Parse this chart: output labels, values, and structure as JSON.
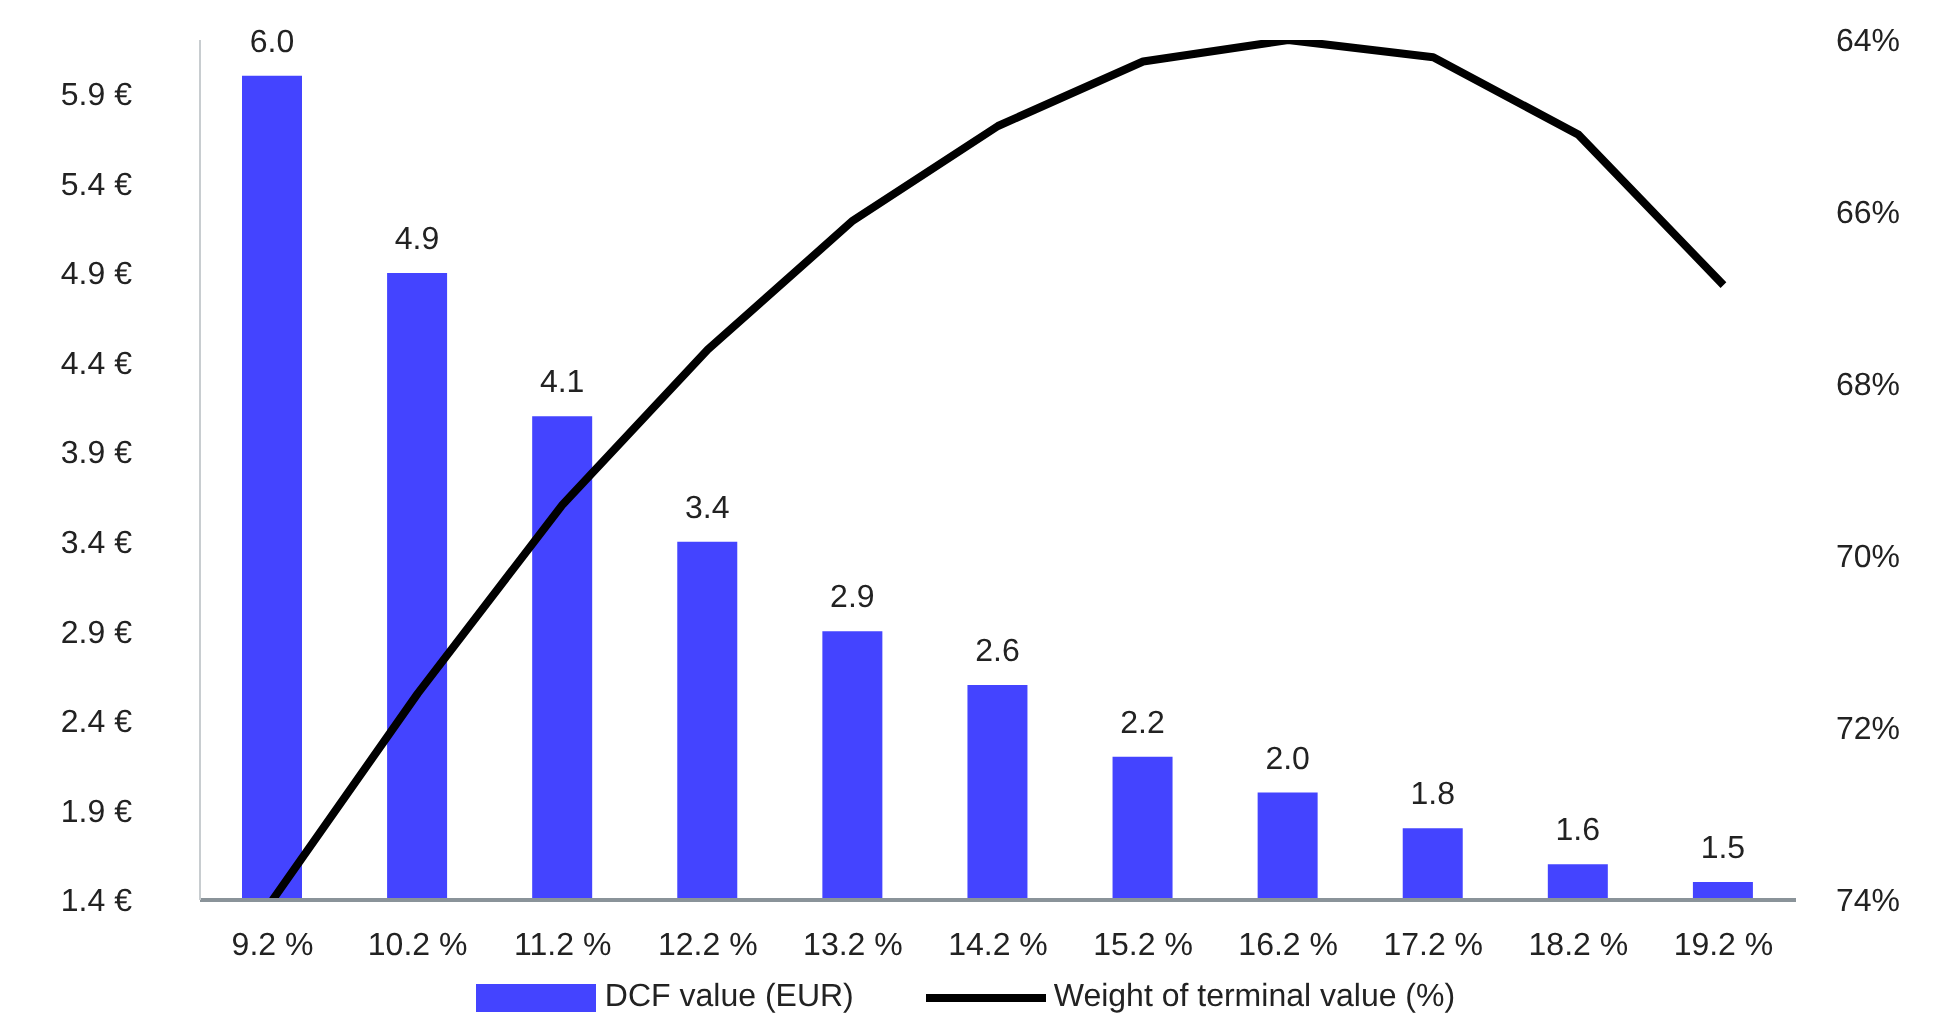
{
  "chart_data": {
    "type": "bar",
    "categories": [
      "9.2 %",
      "10.2 %",
      "11.2 %",
      "12.2 %",
      "13.2 %",
      "14.2 %",
      "15.2 %",
      "16.2 %",
      "17.2 %",
      "18.2 %",
      "19.2 %"
    ],
    "series": [
      {
        "name": "DCF value (EUR)",
        "color": "#4444ff",
        "values": [
          6.0,
          4.9,
          4.1,
          3.4,
          2.9,
          2.6,
          2.2,
          2.0,
          1.8,
          1.6,
          1.5
        ],
        "value_labels": [
          "6.0",
          "4.9",
          "4.1",
          "3.4",
          "2.9",
          "2.6",
          "2.2",
          "2.0",
          "1.8",
          "1.6",
          "1.5"
        ]
      },
      {
        "name": "Weight of terminal value (%)",
        "type": "line",
        "axis": "y2",
        "color": "#000000",
        "values": [
          74.0,
          71.6,
          69.4,
          67.6,
          66.1,
          65.0,
          64.25,
          64.0,
          64.2,
          65.1,
          66.85
        ]
      }
    ],
    "ylim": [
      1.4,
      6.2
    ],
    "yticks": [
      {
        "value": 1.4,
        "label": "1.4 €"
      },
      {
        "value": 1.9,
        "label": "1.9 €"
      },
      {
        "value": 2.4,
        "label": "2.4 €"
      },
      {
        "value": 2.9,
        "label": "2.9 €"
      },
      {
        "value": 3.4,
        "label": "3.4 €"
      },
      {
        "value": 3.9,
        "label": "3.9 €"
      },
      {
        "value": 4.4,
        "label": "4.4 €"
      },
      {
        "value": 4.9,
        "label": "4.9 €"
      },
      {
        "value": 5.4,
        "label": "5.4 €"
      },
      {
        "value": 5.9,
        "label": "5.9 €"
      }
    ],
    "y2lim": [
      74,
      64
    ],
    "y2ticks": [
      {
        "value": 64,
        "label": "64%"
      },
      {
        "value": 66,
        "label": "66%"
      },
      {
        "value": 68,
        "label": "68%"
      },
      {
        "value": 70,
        "label": "70%"
      },
      {
        "value": 72,
        "label": "72%"
      },
      {
        "value": 74,
        "label": "74%"
      }
    ],
    "grid": false,
    "legend": "bottom",
    "marker": "none"
  }
}
